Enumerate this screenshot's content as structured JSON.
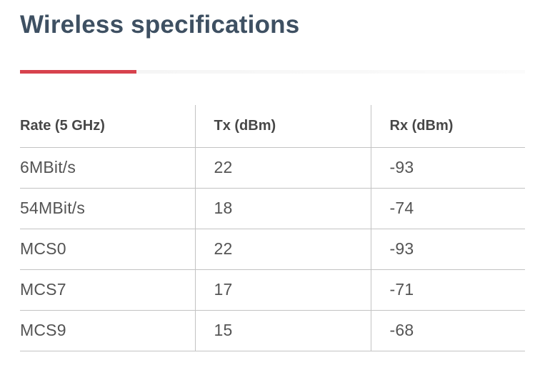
{
  "page": {
    "title": "Wireless specifications"
  },
  "colors": {
    "accent-red": "#d7424d",
    "divider-gray": "#f3f3f3",
    "title-color": "#3e5062",
    "header-text": "#474747",
    "body-text": "#545454",
    "line-color": "#c3c3c3",
    "page-bg": "#ffffff"
  },
  "table": {
    "headers": [
      "Rate (5 GHz)",
      "Tx (dBm)",
      "Rx (dBm)"
    ],
    "rows": [
      {
        "rate": "6MBit/s",
        "tx": "22",
        "rx": "-93"
      },
      {
        "rate": "54MBit/s",
        "tx": "18",
        "rx": "-74"
      },
      {
        "rate": "MCS0",
        "tx": "22",
        "rx": "-93"
      },
      {
        "rate": "MCS7",
        "tx": "17",
        "rx": "-71"
      },
      {
        "rate": "MCS9",
        "tx": "15",
        "rx": "-68"
      }
    ]
  }
}
